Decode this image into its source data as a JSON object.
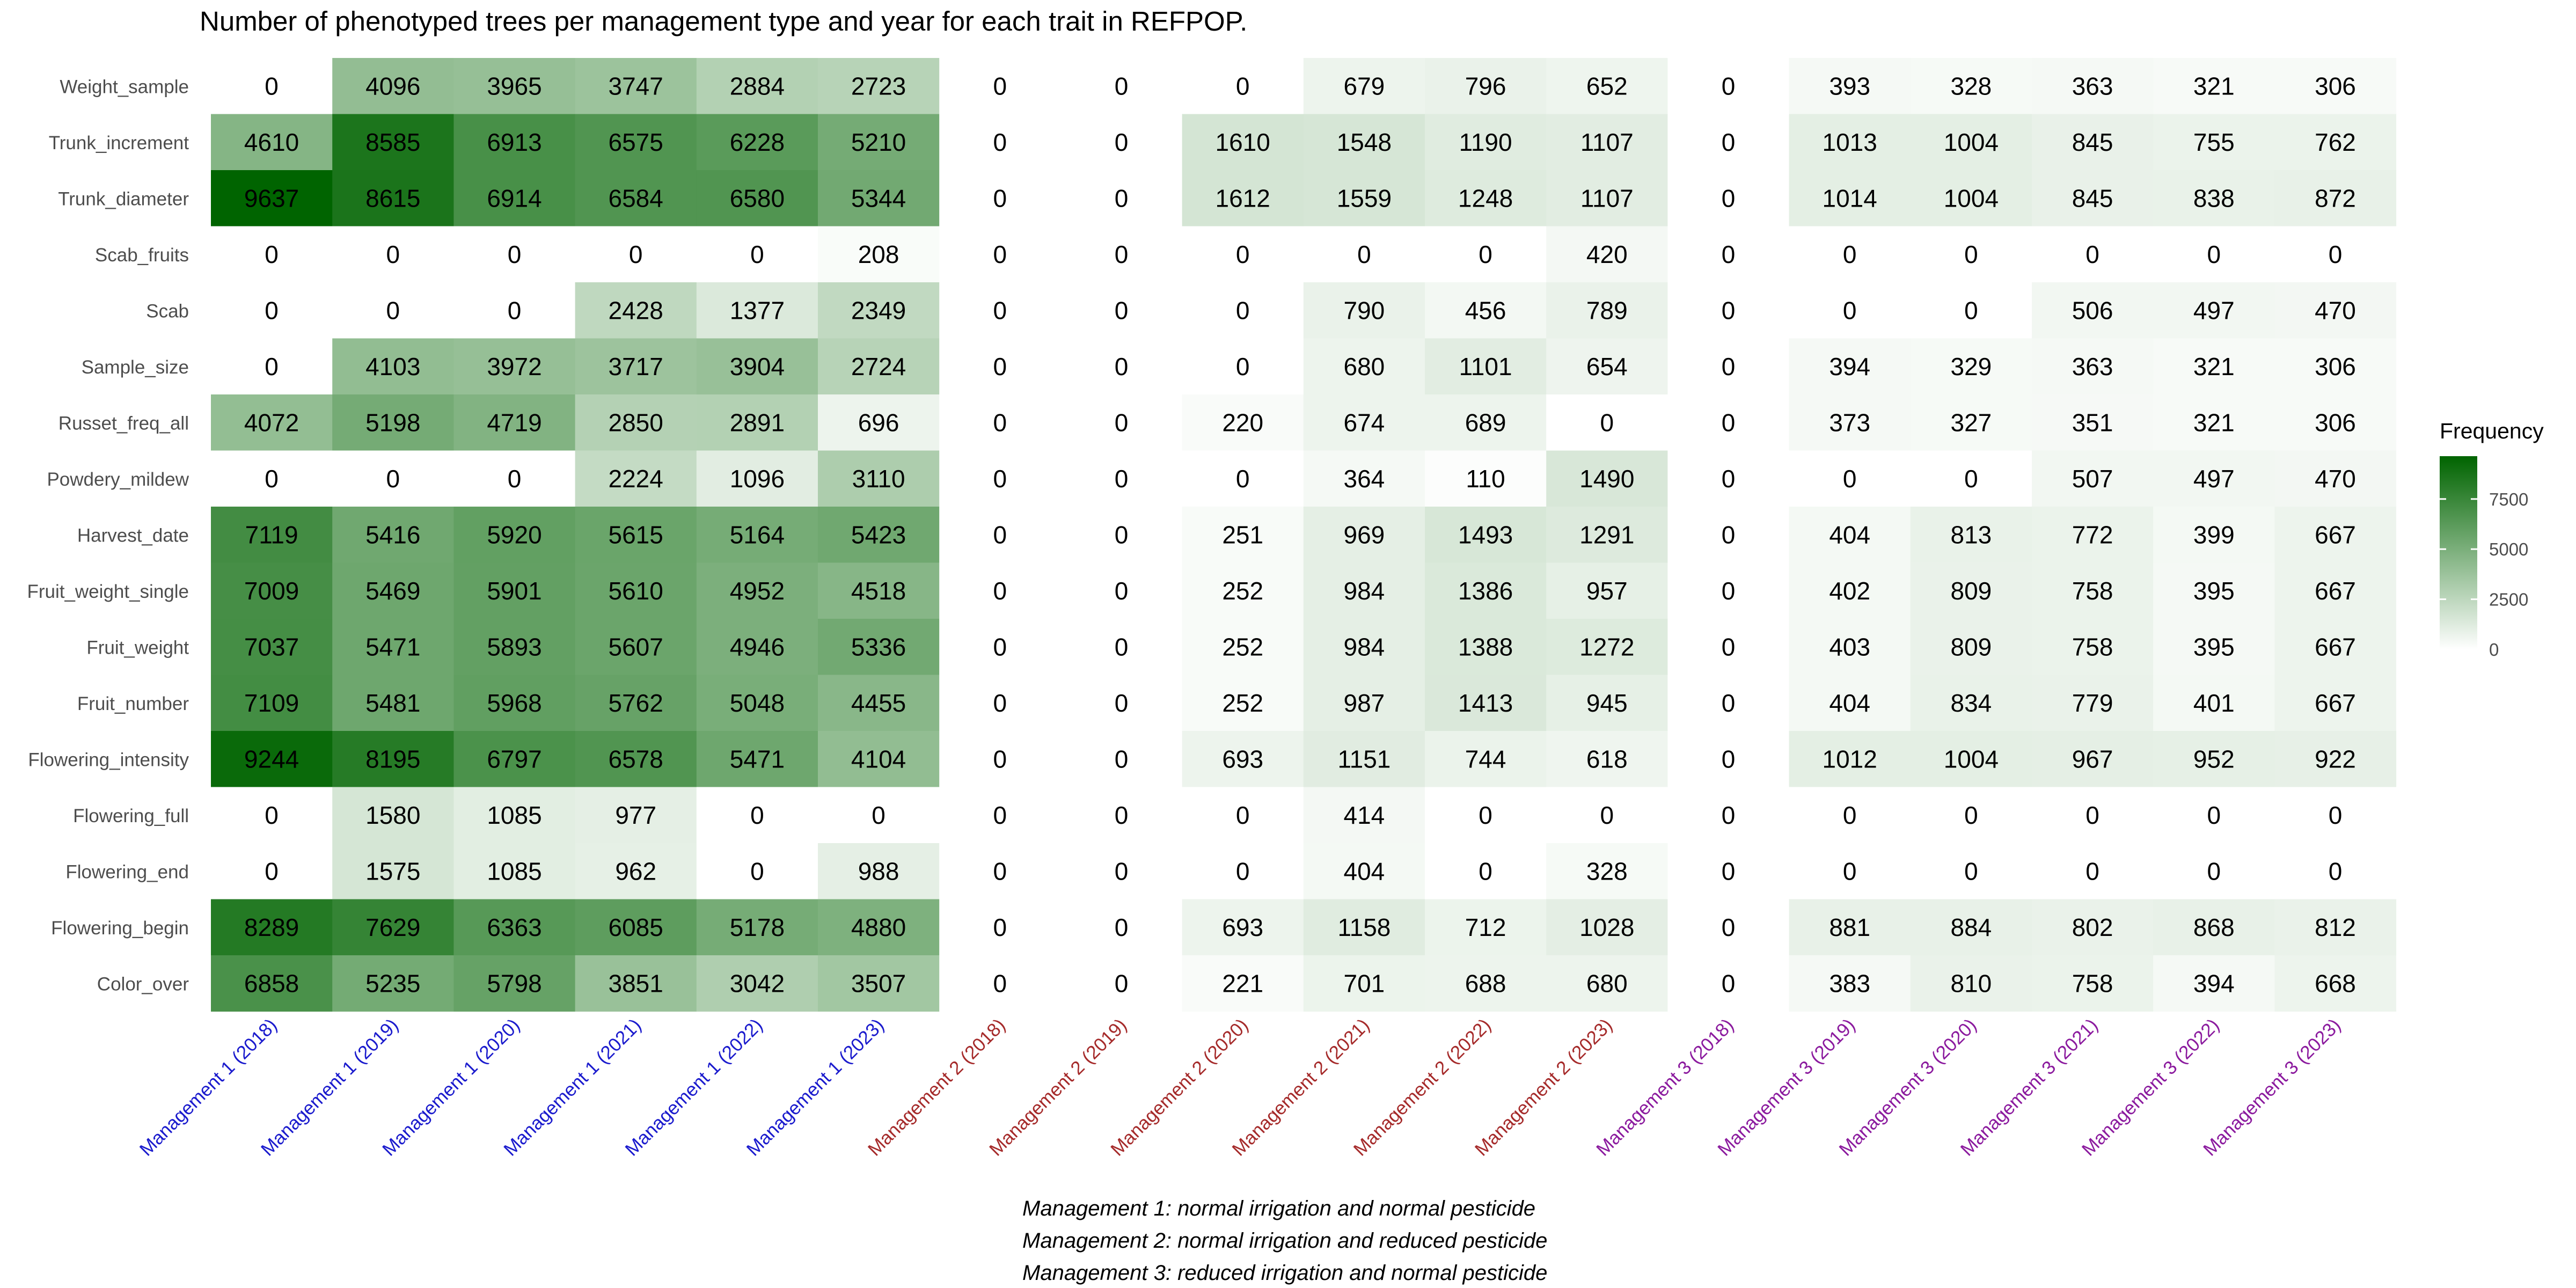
{
  "chart_data": {
    "type": "heatmap",
    "title": "Number of phenotyped trees per management type and year for each trait in REFPOP.",
    "xlabel": "",
    "ylabel": "",
    "columns": [
      "Management 1 (2018)",
      "Management 1 (2019)",
      "Management 1 (2020)",
      "Management 1 (2021)",
      "Management 1 (2022)",
      "Management 1 (2023)",
      "Management 2 (2018)",
      "Management 2 (2019)",
      "Management 2 (2020)",
      "Management 2 (2021)",
      "Management 2 (2022)",
      "Management 2 (2023)",
      "Management 3 (2018)",
      "Management 3 (2019)",
      "Management 3 (2020)",
      "Management 3 (2021)",
      "Management 3 (2022)",
      "Management 3 (2023)"
    ],
    "column_groups": [
      1,
      1,
      1,
      1,
      1,
      1,
      2,
      2,
      2,
      2,
      2,
      2,
      3,
      3,
      3,
      3,
      3,
      3
    ],
    "group_colors": {
      "1": "#1a1acd",
      "2": "#a52a2a",
      "3": "#8b1a9e"
    },
    "rows": [
      "Weight_sample",
      "Trunk_increment",
      "Trunk_diameter",
      "Scab_fruits",
      "Scab",
      "Sample_size",
      "Russet_freq_all",
      "Powdery_mildew",
      "Harvest_date",
      "Fruit_weight_single",
      "Fruit_weight",
      "Fruit_number",
      "Flowering_intensity",
      "Flowering_full",
      "Flowering_end",
      "Flowering_begin",
      "Color_over"
    ],
    "values": [
      [
        0,
        4096,
        3965,
        3747,
        2884,
        2723,
        0,
        0,
        0,
        679,
        796,
        652,
        0,
        393,
        328,
        363,
        321,
        306
      ],
      [
        4610,
        8585,
        6913,
        6575,
        6228,
        5210,
        0,
        0,
        1610,
        1548,
        1190,
        1107,
        0,
        1013,
        1004,
        845,
        755,
        762
      ],
      [
        9637,
        8615,
        6914,
        6584,
        6580,
        5344,
        0,
        0,
        1612,
        1559,
        1248,
        1107,
        0,
        1014,
        1004,
        845,
        838,
        872
      ],
      [
        0,
        0,
        0,
        0,
        0,
        208,
        0,
        0,
        0,
        0,
        0,
        420,
        0,
        0,
        0,
        0,
        0,
        0
      ],
      [
        0,
        0,
        0,
        2428,
        1377,
        2349,
        0,
        0,
        0,
        790,
        456,
        789,
        0,
        0,
        0,
        506,
        497,
        470
      ],
      [
        0,
        4103,
        3972,
        3717,
        3904,
        2724,
        0,
        0,
        0,
        680,
        1101,
        654,
        0,
        394,
        329,
        363,
        321,
        306
      ],
      [
        4072,
        5198,
        4719,
        2850,
        2891,
        696,
        0,
        0,
        220,
        674,
        689,
        0,
        0,
        373,
        327,
        351,
        321,
        306
      ],
      [
        0,
        0,
        0,
        2224,
        1096,
        3110,
        0,
        0,
        0,
        364,
        110,
        1490,
        0,
        0,
        0,
        507,
        497,
        470
      ],
      [
        7119,
        5416,
        5920,
        5615,
        5164,
        5423,
        0,
        0,
        251,
        969,
        1493,
        1291,
        0,
        404,
        813,
        772,
        399,
        667
      ],
      [
        7009,
        5469,
        5901,
        5610,
        4952,
        4518,
        0,
        0,
        252,
        984,
        1386,
        957,
        0,
        402,
        809,
        758,
        395,
        667
      ],
      [
        7037,
        5471,
        5893,
        5607,
        4946,
        5336,
        0,
        0,
        252,
        984,
        1388,
        1272,
        0,
        403,
        809,
        758,
        395,
        667
      ],
      [
        7109,
        5481,
        5968,
        5762,
        5048,
        4455,
        0,
        0,
        252,
        987,
        1413,
        945,
        0,
        404,
        834,
        779,
        401,
        667
      ],
      [
        9244,
        8195,
        6797,
        6578,
        5471,
        4104,
        0,
        0,
        693,
        1151,
        744,
        618,
        0,
        1012,
        1004,
        967,
        952,
        922
      ],
      [
        0,
        1580,
        1085,
        977,
        0,
        0,
        0,
        0,
        0,
        414,
        0,
        0,
        0,
        0,
        0,
        0,
        0,
        0
      ],
      [
        0,
        1575,
        1085,
        962,
        0,
        988,
        0,
        0,
        0,
        404,
        0,
        328,
        0,
        0,
        0,
        0,
        0,
        0
      ],
      [
        8289,
        7629,
        6363,
        6085,
        5178,
        4880,
        0,
        0,
        693,
        1158,
        712,
        1028,
        0,
        881,
        884,
        802,
        868,
        812
      ],
      [
        6858,
        5235,
        5798,
        3851,
        3042,
        3507,
        0,
        0,
        221,
        701,
        688,
        680,
        0,
        383,
        810,
        758,
        394,
        668
      ]
    ],
    "color_scale": {
      "low": "#ffffff",
      "high": "#006400",
      "min": 0,
      "max": 9637
    },
    "legend": {
      "title": "Frequency",
      "ticks": [
        0,
        2500,
        5000,
        7500
      ],
      "placement": "right"
    },
    "grid": false,
    "notes": [
      "Management 1: normal irrigation and normal pesticide",
      "Management 2: normal irrigation and reduced pesticide",
      "Management 3: reduced irrigation and normal pesticide"
    ]
  }
}
